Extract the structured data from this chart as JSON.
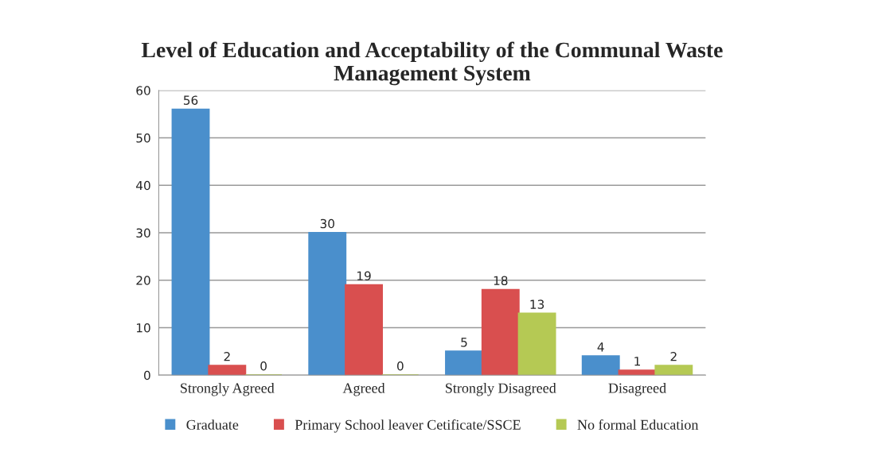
{
  "chart_data": {
    "type": "bar",
    "title": "Level of Education and Acceptability of the Communal Waste\nManagement System",
    "categories": [
      "Strongly Agreed",
      "Agreed",
      "Strongly Disagreed",
      "Disagreed"
    ],
    "series": [
      {
        "name": "Graduate",
        "color": "#4a8fcc",
        "values": [
          56,
          30,
          5,
          4
        ]
      },
      {
        "name": "Primary School leaver Cetificate/SSCE",
        "color": "#d94f4f",
        "values": [
          2,
          19,
          18,
          1
        ]
      },
      {
        "name": "No formal Education",
        "color": "#b5c954",
        "values": [
          0,
          0,
          13,
          2
        ]
      }
    ],
    "ylim": [
      0,
      60
    ],
    "yticks": [
      0,
      10,
      20,
      30,
      40,
      50,
      60
    ],
    "grid": "y",
    "legend": "bottom",
    "data_labels": true
  }
}
